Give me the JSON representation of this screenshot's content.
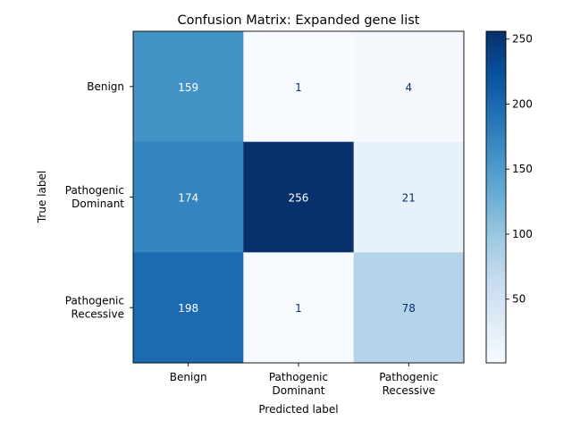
{
  "chart_data": {
    "type": "heatmap",
    "title": "Confusion Matrix: Expanded gene list",
    "xlabel": "Predicted label",
    "ylabel": "True label",
    "row_labels": [
      [
        "Benign"
      ],
      [
        "Pathogenic",
        "Dominant"
      ],
      [
        "Pathogenic",
        "Recessive"
      ]
    ],
    "col_labels": [
      [
        "Benign"
      ],
      [
        "Pathogenic",
        "Dominant"
      ],
      [
        "Pathogenic",
        "Recessive"
      ]
    ],
    "values": [
      [
        159,
        1,
        4
      ],
      [
        174,
        256,
        21
      ],
      [
        198,
        1,
        78
      ]
    ],
    "colormap": "Blues",
    "colorbar": {
      "min": 1,
      "max": 256,
      "ticks": [
        50,
        100,
        150,
        200,
        250
      ]
    },
    "colors": {
      "dark_text": "#08306b",
      "light_text": "#ffffff"
    }
  }
}
